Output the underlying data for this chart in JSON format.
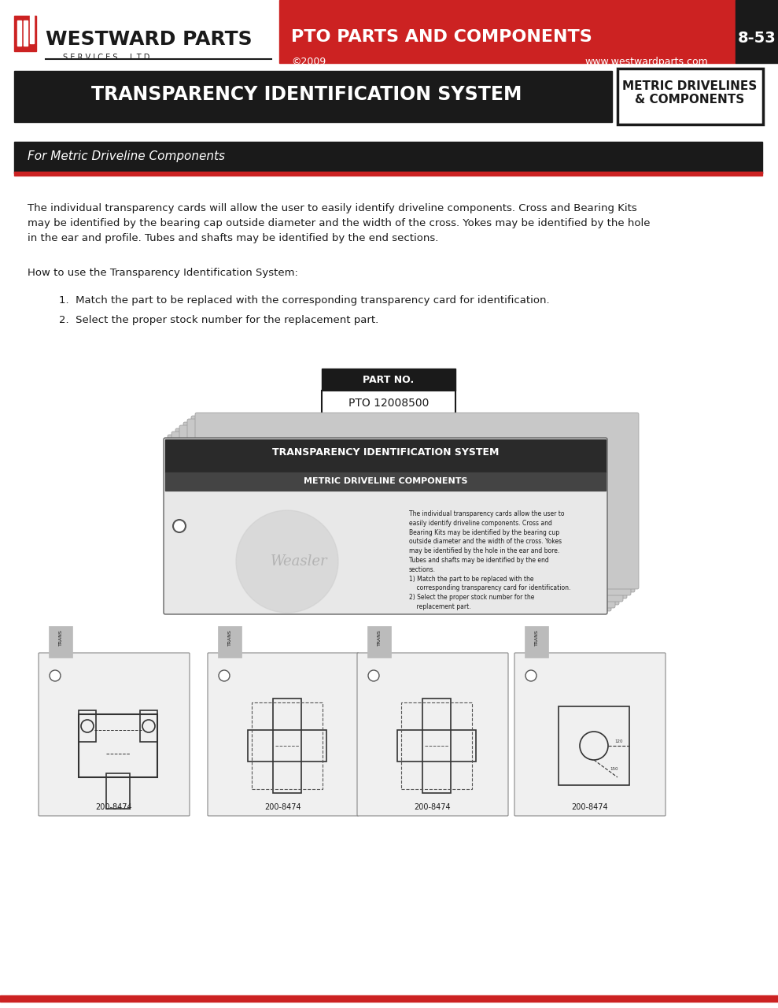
{
  "bg_color": "#ffffff",
  "header_red_color": "#cc2222",
  "header_black_color": "#1a1a1a",
  "header_white_color": "#ffffff",
  "title_text": "TRANSPARENCY IDENTIFICATION SYSTEM",
  "title_bg": "#1a1a1a",
  "title_right_text": "METRIC DRIVELINES\n& COMPONENTS",
  "subtitle_text": "For Metric Driveline Components",
  "subtitle_bg": "#1a1a1a",
  "red_bar_color": "#cc2222",
  "body_text_1": "The individual transparency cards will allow the user to easily identify driveline components. Cross and Bearing Kits\nmay be identified by the bearing cap outside diameter and the width of the cross. Yokes may be identified by the hole\nin the ear and profile. Tubes and shafts may be identified by the end sections.",
  "body_text_2": "How to use the Transparency Identification System:",
  "bullet_1": "1.  Match the part to be replaced with the corresponding transparency card for identification.",
  "bullet_2": "2.  Select the proper stock number for the replacement part.",
  "part_no_label": "PART NO.",
  "part_no_value": "PTO 12008500",
  "company_name": "WESTWARD PARTS",
  "company_sub": "S E R V I C E S     L T D",
  "pto_header": "PTO PARTS AND COMPONENTS",
  "copyright": "©2009",
  "website": "www.westwardparts.com",
  "page_num": "8-53",
  "card_title1": "TRANSPARENCY IDENTIFICATION SYSTEM",
  "card_title2": "METRIC DRIVELINE COMPONENTS",
  "card_body": "The individual transparency cards allow the user to\neasily identify driveline components. Cross and\nBearing Kits may be identified by the bearing cup\noutside diameter and the width of the cross. Yokes\nmay be identified by the hole in the ear and bore.\nTubes and shafts may be identified by the end\nsections.\n1) Match the part to be replaced with the\n    corresponding transparency card for identification.\n2) Select the proper stock number for the\n    replacement part.",
  "part_label": "200-8474"
}
